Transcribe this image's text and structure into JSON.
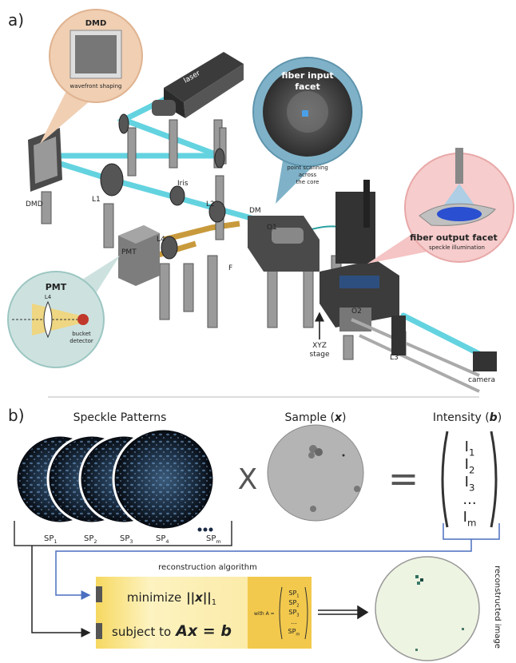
{
  "panel_a": {
    "label": "a)",
    "callouts": {
      "dmd": {
        "title": "DMD",
        "caption": "wavefront shaping"
      },
      "fiber_input": {
        "title_lines": [
          "fiber input",
          "facet"
        ],
        "caption_lines": [
          "point scanning",
          "across",
          "the core"
        ]
      },
      "fiber_output": {
        "title": "fiber output facet",
        "caption": "speckle illumination"
      },
      "pmt": {
        "title": "PMT",
        "lens": "L4",
        "caption_lines": [
          "bucket",
          "detector"
        ]
      }
    },
    "components": {
      "laser": "laser",
      "dmd": "DMD",
      "l1": "L1",
      "iris": "Iris",
      "l2": "L2",
      "dm": "DM",
      "o1": "O1",
      "pmt": "PMT",
      "l4": "L4",
      "f": "F",
      "stage_lines": [
        "XYZ",
        "stage"
      ],
      "o2": "O2",
      "l3": "L3",
      "camera": "camera"
    }
  },
  "panel_b": {
    "label": "b)",
    "speckle": {
      "title": "Speckle Patterns",
      "patterns": [
        {
          "name": "SP",
          "sub": "1"
        },
        {
          "name": "SP",
          "sub": "2"
        },
        {
          "name": "SP",
          "sub": "3"
        },
        {
          "name": "SP",
          "sub": "4"
        }
      ],
      "last": {
        "name": "SP",
        "sub": "m"
      }
    },
    "multiply": "X",
    "sample": {
      "open": "Sample (",
      "var": "x",
      "close": ")"
    },
    "equals": "=",
    "intensity": {
      "open": "Intensity (",
      "var": "b",
      "close": ")",
      "entries": [
        {
          "name": "I",
          "sub": "1"
        },
        {
          "name": "I",
          "sub": "2"
        },
        {
          "name": "I",
          "sub": "3"
        },
        {
          "name": "...",
          "sub": ""
        },
        {
          "name": "I",
          "sub": "m"
        }
      ]
    },
    "algorithm": {
      "heading": "reconstruction algorithm",
      "objective": {
        "verb": "minimize",
        "norm": "||x||",
        "sub": "1"
      },
      "constraint": {
        "text": "subject to",
        "equation": "Ax = b"
      },
      "definition": {
        "text": "with A =",
        "entries": [
          {
            "name": "SP",
            "sub": "1"
          },
          {
            "name": "SP",
            "sub": "2"
          },
          {
            "name": "SP",
            "sub": "3"
          },
          {
            "name": "...",
            "sub": ""
          },
          {
            "name": "SP",
            "sub": "m"
          }
        ]
      }
    },
    "result_label": "reconstructed image"
  }
}
